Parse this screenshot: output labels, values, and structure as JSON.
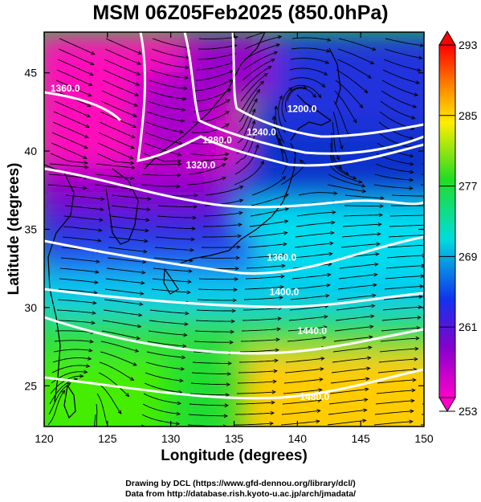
{
  "title": "MSM 06Z05Feb2025 (850.0hPa)",
  "axes": {
    "xlabel": "Longitude (degrees)",
    "ylabel": "Latitude  (degrees)",
    "xticks": [
      "120",
      "125",
      "130",
      "135",
      "140",
      "145",
      "150"
    ],
    "yticks": [
      "25",
      "30",
      "35",
      "40",
      "45"
    ],
    "xlim": [
      120,
      150
    ],
    "ylim": [
      22.4,
      47.6
    ]
  },
  "colorbar": {
    "labels": [
      "293",
      "285",
      "277",
      "269",
      "261",
      "253"
    ],
    "range": [
      253,
      293
    ]
  },
  "contours": [
    {
      "label": "1360.0",
      "lon": 120.5,
      "lat": 43.8
    },
    {
      "label": "1280.0",
      "lon": 132.5,
      "lat": 40.5
    },
    {
      "label": "1240.0",
      "lon": 136.0,
      "lat": 41.0
    },
    {
      "label": "1200.0",
      "lon": 139.2,
      "lat": 42.5
    },
    {
      "label": "1320.0",
      "lon": 131.2,
      "lat": 38.9
    },
    {
      "label": "1360.0",
      "lon": 137.6,
      "lat": 33.0
    },
    {
      "label": "1400.0",
      "lon": 137.8,
      "lat": 30.8
    },
    {
      "label": "1440.0",
      "lon": 140.0,
      "lat": 28.3
    },
    {
      "label": "1480.0",
      "lon": 140.2,
      "lat": 24.1
    }
  ],
  "credits": [
    "Drawing by DCL (https://www.gfd-dennou.org/library/dcl/)",
    "Data from http://database.rish.kyoto-u.ac.jp/arch/jmadata/"
  ],
  "colors": {
    "magenta": "#ff00cc",
    "purple": "#8800cc",
    "blue": "#2233dd",
    "cyan": "#00ddee",
    "green": "#22dd22",
    "yellow": "#ccee00",
    "orange": "#ff9900"
  }
}
